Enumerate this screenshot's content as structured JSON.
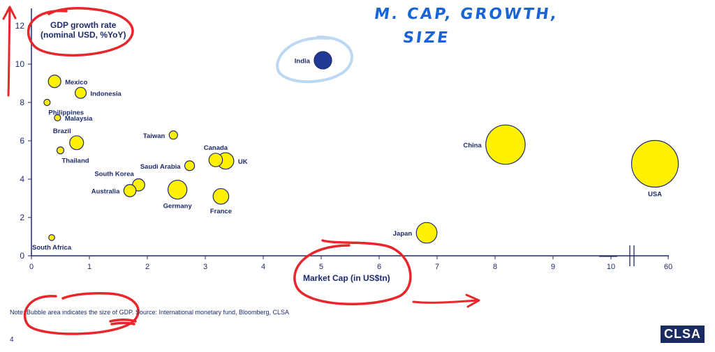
{
  "chart_data": {
    "type": "scatter",
    "bubble": true,
    "xlabel": "Market Cap (in US$tn)",
    "ylabel_lines": [
      "GDP growth rate",
      "(nominal USD, %YoY)"
    ],
    "x_ticks": [
      "0",
      "1",
      "2",
      "3",
      "4",
      "5",
      "6",
      "7",
      "8",
      "9",
      "10",
      "60"
    ],
    "y_ticks": [
      "0",
      "2",
      "4",
      "6",
      "8",
      "10",
      "12"
    ],
    "xlim": [
      0,
      11
    ],
    "ylim": [
      0,
      12.5
    ],
    "axis_break": "between 10 and 60",
    "grid": false,
    "points": [
      {
        "label": "India",
        "x": 5.03,
        "y": 10.2,
        "size": 3.5,
        "color": "#1f3a93",
        "label_side": "left"
      },
      {
        "label": "Mexico",
        "x": 0.4,
        "y": 9.1,
        "size": 1.8,
        "color": "#fff200",
        "label_side": "right"
      },
      {
        "label": "Indonesia",
        "x": 0.85,
        "y": 8.5,
        "size": 1.4,
        "color": "#fff200",
        "label_side": "right"
      },
      {
        "label": "Philippines",
        "x": 0.27,
        "y": 8.0,
        "size": 0.45,
        "color": "#fff200",
        "label_side": "below-right"
      },
      {
        "label": "Malaysia",
        "x": 0.45,
        "y": 7.2,
        "size": 0.45,
        "color": "#fff200",
        "label_side": "right"
      },
      {
        "label": "Brazil",
        "x": 0.78,
        "y": 5.9,
        "size": 2.2,
        "color": "#fff200",
        "label_side": "above-left"
      },
      {
        "label": "Thailand",
        "x": 0.5,
        "y": 5.5,
        "size": 0.55,
        "color": "#fff200",
        "label_side": "below-right"
      },
      {
        "label": "Taiwan",
        "x": 2.45,
        "y": 6.3,
        "size": 0.8,
        "color": "#fff200",
        "label_side": "left"
      },
      {
        "label": "Canada",
        "x": 3.18,
        "y": 5.0,
        "size": 2.1,
        "color": "#fff200",
        "label_side": "above"
      },
      {
        "label": "UK",
        "x": 3.35,
        "y": 4.95,
        "size": 3.1,
        "color": "#fff200",
        "label_side": "right"
      },
      {
        "label": "Saudi Arabia",
        "x": 2.73,
        "y": 4.7,
        "size": 1.1,
        "color": "#fff200",
        "label_side": "left"
      },
      {
        "label": "South Korea",
        "x": 1.85,
        "y": 3.7,
        "size": 1.7,
        "color": "#fff200",
        "label_side": "above-left"
      },
      {
        "label": "Australia",
        "x": 1.7,
        "y": 3.4,
        "size": 1.7,
        "color": "#fff200",
        "label_side": "left"
      },
      {
        "label": "Germany",
        "x": 2.52,
        "y": 3.45,
        "size": 4.1,
        "color": "#fff200",
        "label_side": "below"
      },
      {
        "label": "France",
        "x": 3.27,
        "y": 3.1,
        "size": 2.8,
        "color": "#fff200",
        "label_side": "below"
      },
      {
        "label": "South Africa",
        "x": 0.35,
        "y": 0.95,
        "size": 0.4,
        "color": "#fff200",
        "label_side": "below"
      },
      {
        "label": "Japan",
        "x": 6.82,
        "y": 1.2,
        "size": 4.9,
        "color": "#fff200",
        "label_side": "left"
      },
      {
        "label": "China",
        "x": 8.18,
        "y": 5.8,
        "size": 17.7,
        "color": "#fff200",
        "label_side": "left"
      },
      {
        "label": "USA",
        "x": 10.75,
        "y": 4.8,
        "size": 25.0,
        "color": "#fff200",
        "label_side": "below"
      }
    ]
  },
  "footer": {
    "note": "Note: Bubble area indicates the size of GDP. Source: International monetary fund, Bloomberg, CLSA",
    "page_number": "4",
    "logo_text": "CLSA"
  },
  "annotations": {
    "handwriting_line1": "M. CAP, GROWTH,",
    "handwriting_line2": "SIZE",
    "pen_color": "#e8262b",
    "blue_pen_color": "#1a64d6"
  }
}
